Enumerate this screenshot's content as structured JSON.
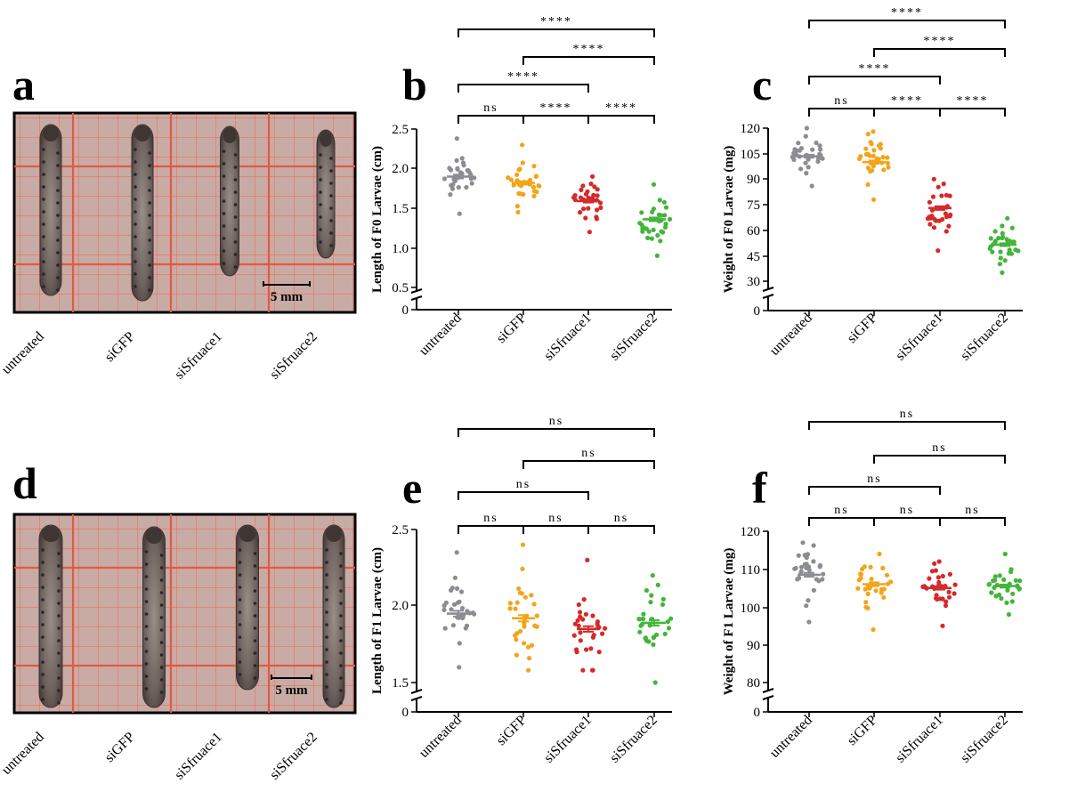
{
  "panels": {
    "a": "a",
    "b": "b",
    "c": "c",
    "d": "d",
    "e": "e",
    "f": "f"
  },
  "photos": [
    {
      "panel": "a",
      "scale_label": "5 mm",
      "categories": [
        "untreated",
        "siGFP",
        "siSfruace1",
        "siSfruace2"
      ]
    },
    {
      "panel": "d",
      "scale_label": "5 mm",
      "categories": [
        "untreated",
        "siGFP",
        "siSfruace1",
        "siSfruace2"
      ]
    }
  ],
  "colors": {
    "untreated": "#8c8c94",
    "siGFP": "#f2a51a",
    "siSfruace1": "#d42a2a",
    "siSfruace2": "#44b53a",
    "grid_bg": "#c9aba6",
    "grid_line": "#e8705a"
  },
  "chart_data": [
    {
      "panel": "b",
      "type": "scatter",
      "ylabel": "Length of F0 Larvae (cm)",
      "categories": [
        "untreated",
        "siGFP",
        "siSfruace1",
        "siSfruace2"
      ],
      "yticks": [
        "0",
        "0.5",
        "1.0",
        "1.5",
        "2.0",
        "2.5"
      ],
      "ylim": [
        0.5,
        2.5
      ],
      "axis_break": true,
      "means": [
        1.9,
        1.82,
        1.59,
        1.36
      ],
      "ranges": [
        [
          1.43,
          2.38
        ],
        [
          1.45,
          2.3
        ],
        [
          1.2,
          1.9
        ],
        [
          0.9,
          1.8
        ]
      ],
      "n": 30,
      "comparisons": [
        {
          "from": "untreated",
          "to": "siGFP",
          "label": "ns"
        },
        {
          "from": "siGFP",
          "to": "siSfruace1",
          "label": "****"
        },
        {
          "from": "siSfruace1",
          "to": "siSfruace2",
          "label": "****"
        },
        {
          "from": "untreated",
          "to": "siSfruace1",
          "label": "****"
        },
        {
          "from": "siGFP",
          "to": "siSfruace2",
          "label": "****"
        },
        {
          "from": "untreated",
          "to": "siSfruace2",
          "label": "****"
        }
      ]
    },
    {
      "panel": "c",
      "type": "scatter",
      "ylabel": "Weight of F0 Larvae (mg)",
      "categories": [
        "untreated",
        "siGFP",
        "siSfruace1",
        "siSfruace2"
      ],
      "yticks": [
        "0",
        "30",
        "45",
        "60",
        "75",
        "90",
        "105",
        "120"
      ],
      "ylim": [
        30,
        120
      ],
      "axis_break": true,
      "means": [
        103.5,
        100,
        73,
        51.5
      ],
      "ranges": [
        [
          86,
          120
        ],
        [
          78,
          118
        ],
        [
          48,
          90
        ],
        [
          35,
          67
        ]
      ],
      "n": 30,
      "comparisons": [
        {
          "from": "untreated",
          "to": "siGFP",
          "label": "ns"
        },
        {
          "from": "siGFP",
          "to": "siSfruace1",
          "label": "****"
        },
        {
          "from": "siSfruace1",
          "to": "siSfruace2",
          "label": "****"
        },
        {
          "from": "untreated",
          "to": "siSfruace1",
          "label": "****"
        },
        {
          "from": "siGFP",
          "to": "siSfruace2",
          "label": "****"
        },
        {
          "from": "untreated",
          "to": "siSfruace2",
          "label": "****"
        }
      ]
    },
    {
      "panel": "e",
      "type": "scatter",
      "ylabel": "Length of F1 Larvae (cm)",
      "categories": [
        "untreated",
        "siGFP",
        "siSfruace1",
        "siSfruace2"
      ],
      "yticks": [
        "0",
        "1.5",
        "2.0",
        "2.5"
      ],
      "ylim": [
        1.5,
        2.5
      ],
      "axis_break": true,
      "means": [
        1.95,
        1.92,
        1.85,
        1.89
      ],
      "ranges": [
        [
          1.6,
          2.35
        ],
        [
          1.58,
          2.4
        ],
        [
          1.58,
          2.3
        ],
        [
          1.5,
          2.2
        ]
      ],
      "n": 30,
      "comparisons": [
        {
          "from": "untreated",
          "to": "siGFP",
          "label": "ns"
        },
        {
          "from": "siGFP",
          "to": "siSfruace1",
          "label": "ns"
        },
        {
          "from": "siSfruace1",
          "to": "siSfruace2",
          "label": "ns"
        },
        {
          "from": "untreated",
          "to": "siSfruace1",
          "label": "ns"
        },
        {
          "from": "siGFP",
          "to": "siSfruace2",
          "label": "ns"
        },
        {
          "from": "untreated",
          "to": "siSfruace2",
          "label": "ns"
        }
      ]
    },
    {
      "panel": "f",
      "type": "scatter",
      "ylabel": "Weight of F1 Larvae (mg)",
      "categories": [
        "untreated",
        "siGFP",
        "siSfruace1",
        "siSfruace2"
      ],
      "yticks": [
        "0",
        "80",
        "90",
        "100",
        "110",
        "120"
      ],
      "ylim": [
        80,
        120
      ],
      "axis_break": true,
      "means": [
        108.5,
        106,
        105,
        105.5
      ],
      "ranges": [
        [
          96,
          117
        ],
        [
          94,
          114
        ],
        [
          95,
          112
        ],
        [
          98,
          114
        ]
      ],
      "n": 30,
      "comparisons": [
        {
          "from": "untreated",
          "to": "siGFP",
          "label": "ns"
        },
        {
          "from": "siGFP",
          "to": "siSfruace1",
          "label": "ns"
        },
        {
          "from": "siSfruace1",
          "to": "siSfruace2",
          "label": "ns"
        },
        {
          "from": "untreated",
          "to": "siSfruace1",
          "label": "ns"
        },
        {
          "from": "siGFP",
          "to": "siSfruace2",
          "label": "ns"
        },
        {
          "from": "untreated",
          "to": "siSfruace2",
          "label": "ns"
        }
      ]
    }
  ]
}
